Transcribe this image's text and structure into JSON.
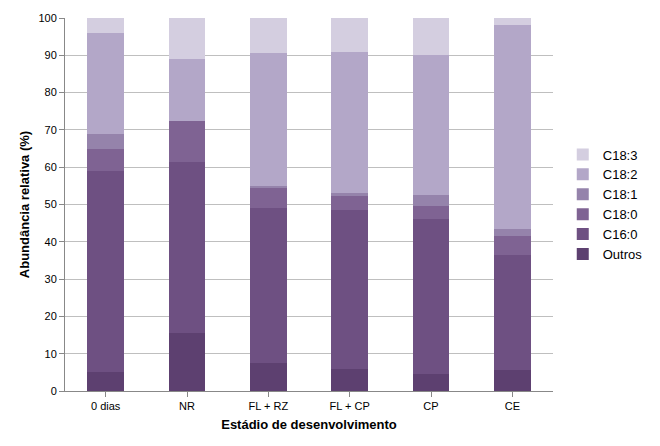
{
  "chart_data": {
    "type": "bar",
    "stacked": true,
    "x_label": "Estádio de desenvolvimento",
    "y_label": "Abundância relativa (%)",
    "categories": [
      "0 dias",
      "NR",
      "FL + RZ",
      "FL + CP",
      "CP",
      "CE"
    ],
    "series": [
      {
        "name": "Outros",
        "color": "#5d4070",
        "values": [
          5,
          15.5,
          7.5,
          6,
          4.5,
          5.5
        ]
      },
      {
        "name": "C16:0",
        "color": "#6e5082",
        "values": [
          54,
          46,
          41.5,
          42.5,
          41.5,
          31
        ]
      },
      {
        "name": "C18:0",
        "color": "#7f6393",
        "values": [
          6,
          11,
          5.5,
          4,
          3.5,
          5
        ]
      },
      {
        "name": "C18:1",
        "color": "#9583ab",
        "values": [
          4,
          0,
          0.5,
          0.5,
          3,
          2
        ]
      },
      {
        "name": "C18:2",
        "color": "#b3a7c8",
        "values": [
          27,
          16.5,
          35.5,
          38,
          37.5,
          54.5
        ]
      },
      {
        "name": "C18:3",
        "color": "#d4cee0",
        "values": [
          4,
          11,
          9.5,
          9,
          10,
          2
        ]
      }
    ],
    "ylim": [
      0,
      100
    ],
    "yticks": [
      0,
      10,
      20,
      30,
      40,
      50,
      60,
      70,
      80,
      90,
      100
    ],
    "grid": true,
    "legend": "right"
  }
}
